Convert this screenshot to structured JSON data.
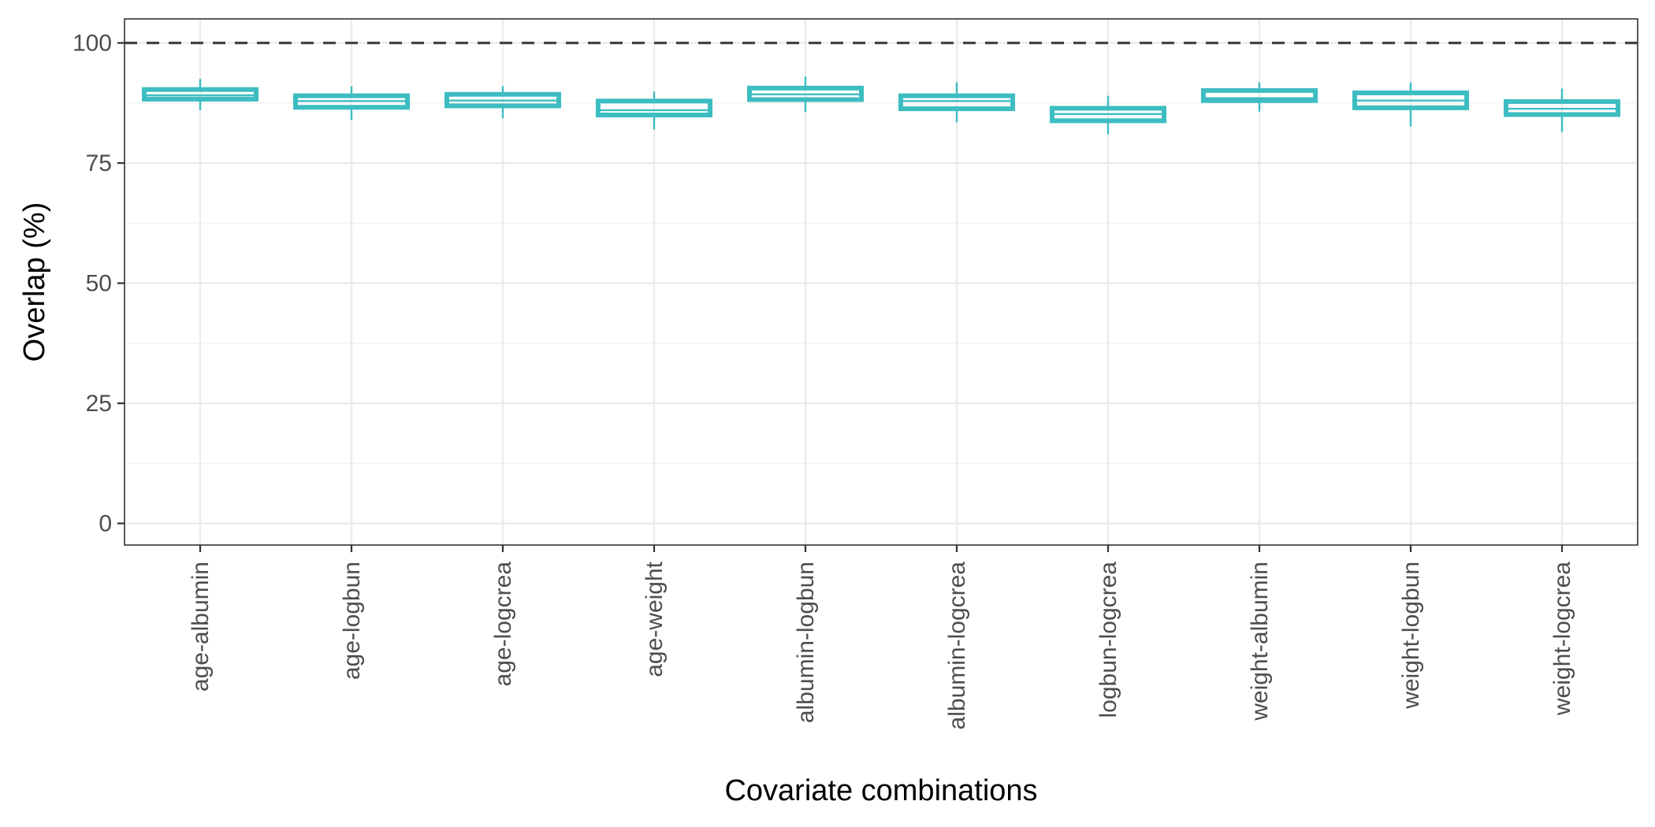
{
  "chart_data": {
    "type": "box",
    "xlabel": "Covariate combinations",
    "ylabel": "Overlap (%)",
    "ylim": [
      -4.5,
      105
    ],
    "y_ticks": [
      0,
      25,
      50,
      75,
      100
    ],
    "y_tick_labels": [
      "0",
      "25",
      "50",
      "75",
      "100"
    ],
    "reference_line": {
      "y": 100,
      "style": "dashed",
      "color": "#444444"
    },
    "box_color": "#3dbdc2",
    "grid": true,
    "legend": "none",
    "categories": [
      "age-albumin",
      "age-logbun",
      "age-logcrea",
      "age-weight",
      "albumin-logbun",
      "albumin-logcrea",
      "logbun-logcrea",
      "weight-albumin",
      "weight-logbun",
      "weight-logcrea"
    ],
    "boxes": [
      {
        "min": 86.0,
        "q1": 88.3,
        "median": 89.1,
        "q3": 90.3,
        "max": 92.5
      },
      {
        "min": 84.0,
        "q1": 86.6,
        "median": 87.9,
        "q3": 89.0,
        "max": 91.0
      },
      {
        "min": 84.3,
        "q1": 86.9,
        "median": 88.0,
        "q3": 89.3,
        "max": 91.0
      },
      {
        "min": 82.0,
        "q1": 85.0,
        "median": 86.0,
        "q3": 87.9,
        "max": 89.9
      },
      {
        "min": 85.6,
        "q1": 88.2,
        "median": 89.3,
        "q3": 90.6,
        "max": 93.0
      },
      {
        "min": 83.5,
        "q1": 86.3,
        "median": 87.9,
        "q3": 89.0,
        "max": 91.8
      },
      {
        "min": 81.0,
        "q1": 83.8,
        "median": 85.2,
        "q3": 86.4,
        "max": 89.0
      },
      {
        "min": 85.7,
        "q1": 88.0,
        "median": 88.5,
        "q3": 90.1,
        "max": 91.8
      },
      {
        "min": 82.6,
        "q1": 86.5,
        "median": 88.0,
        "q3": 89.6,
        "max": 91.8
      },
      {
        "min": 81.5,
        "q1": 85.1,
        "median": 86.3,
        "q3": 87.8,
        "max": 90.5
      }
    ]
  }
}
